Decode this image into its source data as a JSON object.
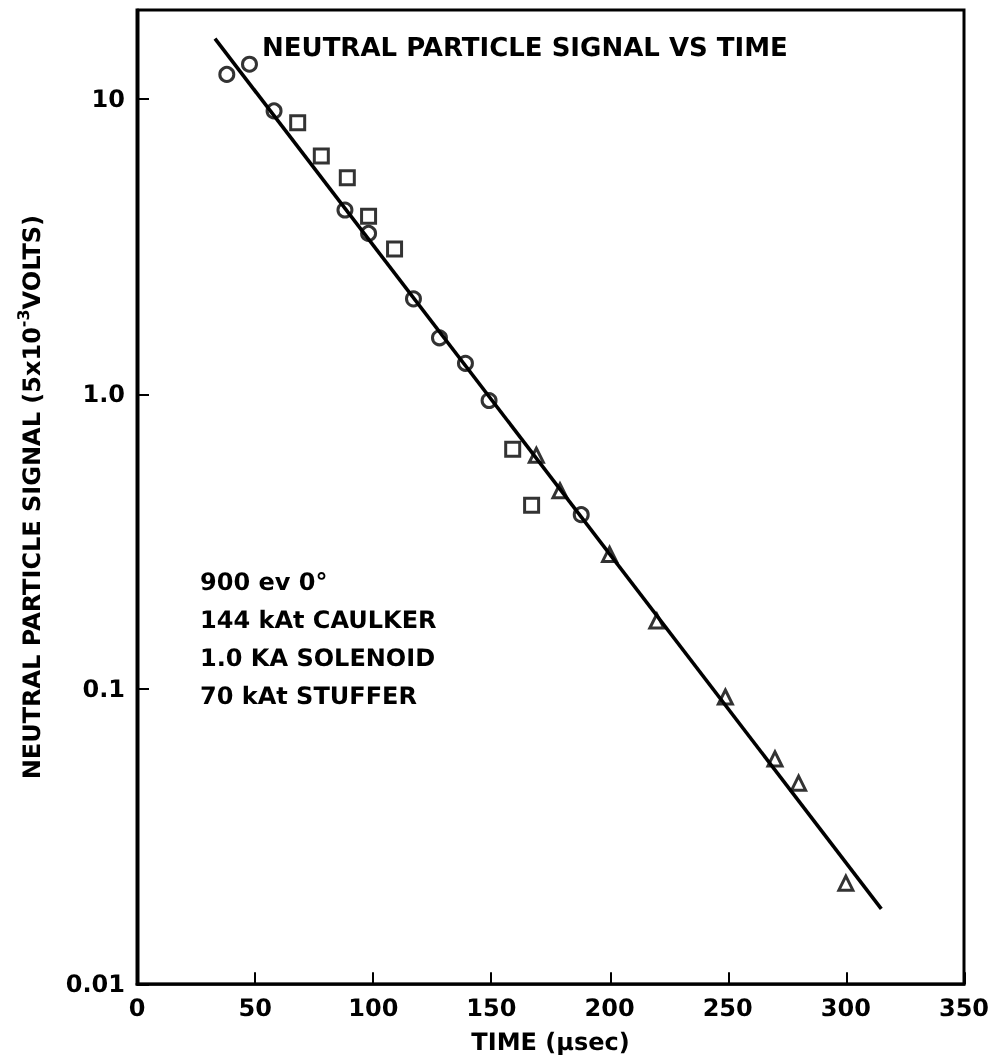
{
  "chart_data": {
    "type": "scatter",
    "title": "NEUTRAL PARTICLE SIGNAL VS TIME",
    "xlabel": "TIME (μsec)",
    "ylabel": "NEUTRAL PARTICLE SIGNAL (5x10$^{-3}$VOLTS)",
    "annotations": [
      "900 ev 0°",
      "144 kAt CAULKER",
      "1.0 KA SOLENOID",
      "70 kAt STUFFER"
    ],
    "log": "y",
    "grid": false,
    "xlim": [
      0,
      350
    ],
    "xticks": [
      0,
      50,
      100,
      150,
      200,
      250,
      300,
      350
    ],
    "ylim": [
      0.01,
      20
    ],
    "yticks": [
      0.01,
      0.1,
      {
        "value": 1,
        "label": "1.0"
      },
      10
    ],
    "series": [
      {
        "marker": "circle",
        "color": "#000000",
        "x": [
          38,
          47.6,
          58,
          88,
          98,
          117,
          128,
          139,
          149,
          188
        ],
        "values": [
          12.1,
          13.1,
          9.1,
          4.2,
          3.5,
          2.1,
          1.55,
          1.27,
          0.95,
          0.39
        ]
      },
      {
        "marker": "square",
        "color": "#000000",
        "x": [
          68,
          78,
          89,
          98,
          109,
          159,
          167
        ],
        "values": [
          8.3,
          6.4,
          5.4,
          4.0,
          3.1,
          0.65,
          0.42
        ]
      },
      {
        "marker": "triangle",
        "color": "#000000",
        "x": [
          169,
          179,
          200,
          220,
          249,
          270,
          280,
          300
        ],
        "values": [
          0.62,
          0.47,
          0.286,
          0.17,
          0.094,
          0.058,
          0.048,
          0.022
        ]
      },
      {
        "type": "line",
        "marker": "none",
        "color": "#000000",
        "x": [
          33,
          315
        ],
        "values": [
          16,
          0.018
        ]
      }
    ]
  }
}
